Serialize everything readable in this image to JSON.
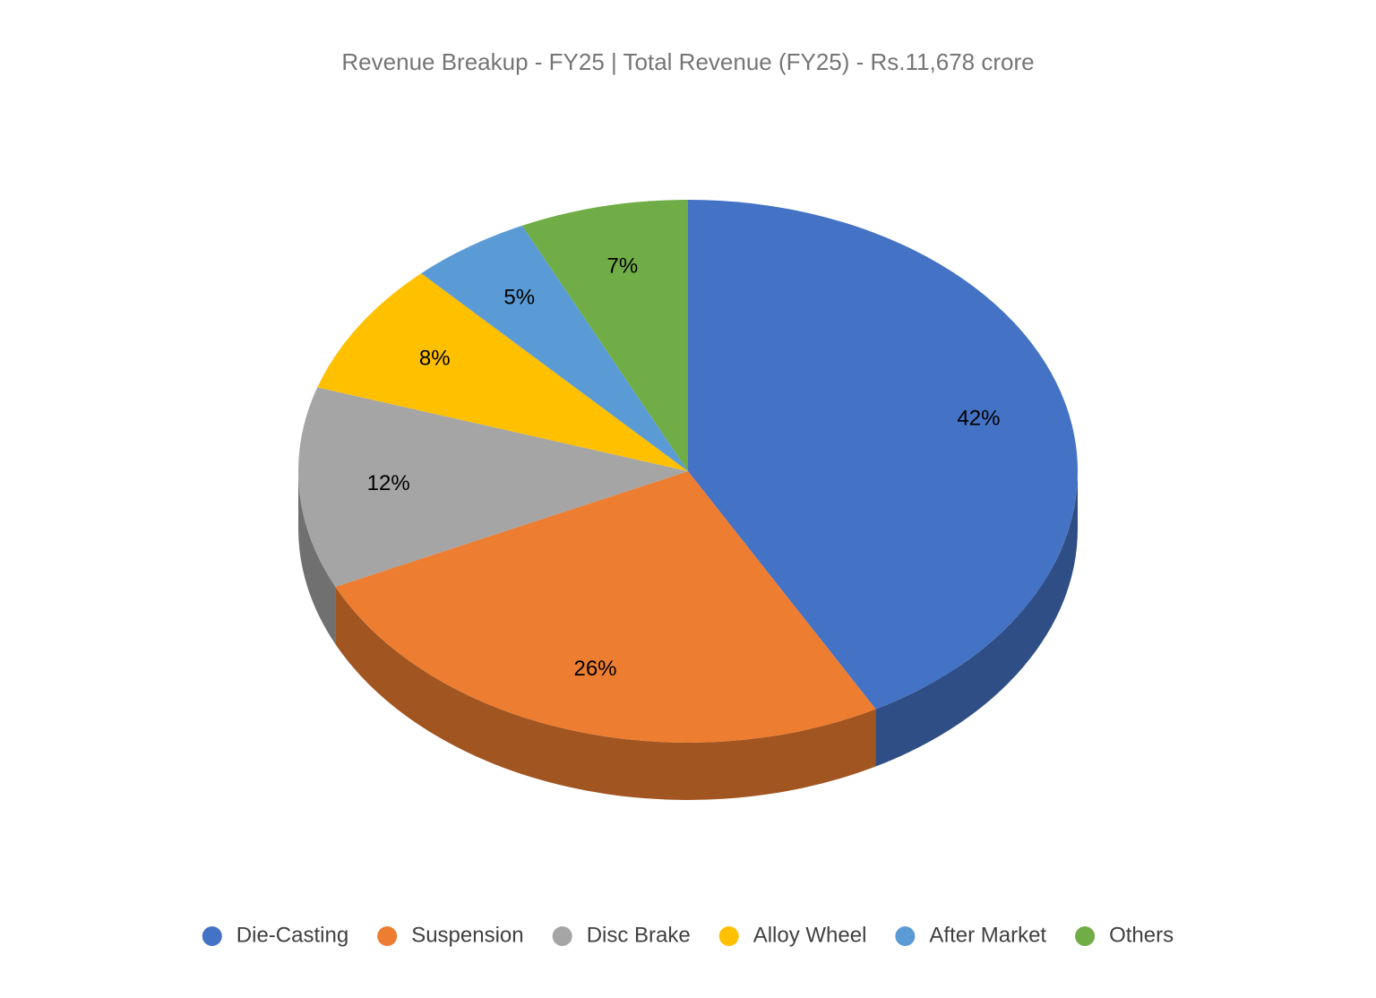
{
  "chart_data": {
    "type": "pie3d",
    "title": "Revenue Breakup - FY25 | Total Revenue (FY25) - Rs.11,678 crore",
    "categories": [
      "Die-Casting",
      "Suspension",
      "Disc Brake",
      "Alloy Wheel",
      "After Market",
      "Others"
    ],
    "values": [
      42,
      26,
      12,
      8,
      5,
      7
    ],
    "value_labels": [
      "42%",
      "26%",
      "12%",
      "8%",
      "5%",
      "7%"
    ],
    "colors": [
      "#4472c4",
      "#ed7d31",
      "#a5a5a5",
      "#ffc000",
      "#5b9bd5",
      "#70ad47"
    ],
    "legend": "bottom"
  }
}
